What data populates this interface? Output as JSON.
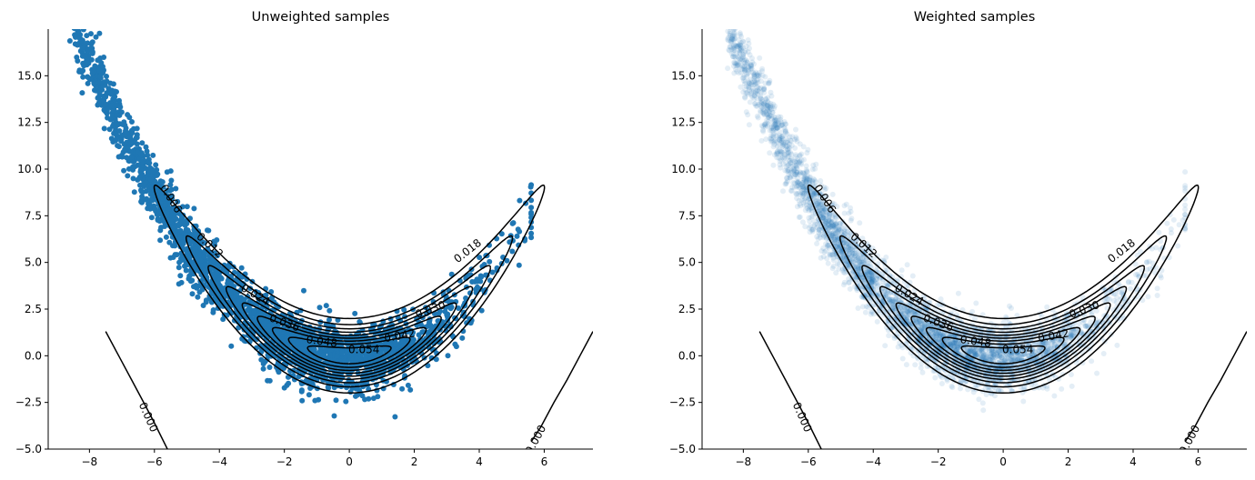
{
  "chart_data": [
    {
      "type": "scatter",
      "title": "Unweighted samples",
      "xlim": [
        -9.27,
        7.5
      ],
      "ylim": [
        -5.0,
        17.5
      ],
      "xticks": [
        "−8",
        "−6",
        "−4",
        "−2",
        "0",
        "2",
        "4",
        "6"
      ],
      "yticks": [
        "−5.0",
        "−2.5",
        "0.0",
        "2.5",
        "5.0",
        "7.5",
        "10.0",
        "12.5",
        "15.0"
      ],
      "grid": false,
      "marker_color": "#1f77b4",
      "marker_alpha": 1.0,
      "contour_color": "#000000",
      "contour_levels": [
        "0.006",
        "0.012",
        "0.018",
        "0.024",
        "0.030",
        "0.036",
        "0.042",
        "0.048",
        "0.054"
      ],
      "zero_contour_label": "0.000"
    },
    {
      "type": "scatter",
      "title": "Weighted samples",
      "xlim": [
        -9.27,
        7.5
      ],
      "ylim": [
        -5.0,
        17.5
      ],
      "xticks": [
        "−8",
        "−6",
        "−4",
        "−2",
        "0",
        "2",
        "4",
        "6"
      ],
      "yticks": [
        "−5.0",
        "−2.5",
        "0.0",
        "2.5",
        "5.0",
        "7.5",
        "10.0",
        "12.5",
        "15.0"
      ],
      "grid": false,
      "marker_color": "#1f77b4",
      "marker_alpha": 0.12,
      "contour_color": "#000000",
      "contour_levels": [
        "0.006",
        "0.012",
        "0.018",
        "0.024",
        "0.030",
        "0.036",
        "0.042",
        "0.048",
        "0.054"
      ],
      "zero_contour_label": "0.000"
    }
  ]
}
